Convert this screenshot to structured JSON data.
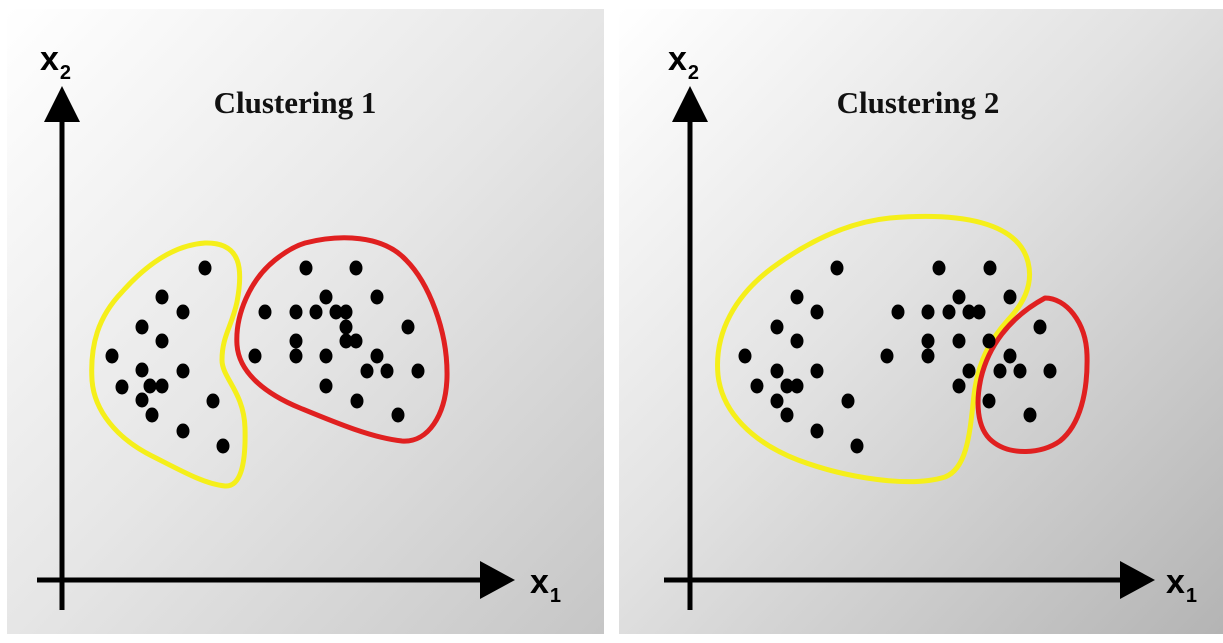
{
  "panels": [
    {
      "title": "Clustering 1",
      "y_axis": {
        "var": "x",
        "sub": "2"
      },
      "x_axis": {
        "var": "x",
        "sub": "1"
      },
      "points": [
        [
          205,
          268
        ],
        [
          162,
          297
        ],
        [
          183,
          312
        ],
        [
          142,
          327
        ],
        [
          162,
          341
        ],
        [
          112,
          356
        ],
        [
          142,
          370
        ],
        [
          183,
          371
        ],
        [
          122,
          387
        ],
        [
          150,
          386
        ],
        [
          162,
          386
        ],
        [
          142,
          400
        ],
        [
          152,
          415
        ],
        [
          213,
          401
        ],
        [
          183,
          431
        ],
        [
          223,
          446
        ],
        [
          306,
          268
        ],
        [
          356,
          268
        ],
        [
          377,
          297
        ],
        [
          326,
          297
        ],
        [
          265,
          312
        ],
        [
          296,
          312
        ],
        [
          316,
          312
        ],
        [
          336,
          312
        ],
        [
          346,
          312
        ],
        [
          346,
          327
        ],
        [
          408,
          327
        ],
        [
          296,
          341
        ],
        [
          356,
          341
        ],
        [
          346,
          341
        ],
        [
          255,
          356
        ],
        [
          296,
          356
        ],
        [
          326,
          356
        ],
        [
          377,
          356
        ],
        [
          387,
          371
        ],
        [
          367,
          371
        ],
        [
          418,
          371
        ],
        [
          326,
          386
        ],
        [
          357,
          401
        ],
        [
          398,
          415
        ]
      ],
      "clusters": [
        {
          "name": "yellow",
          "color": "#f5ef1a"
        },
        {
          "name": "red",
          "color": "#e02020"
        }
      ]
    },
    {
      "title": "Clustering 2",
      "y_axis": {
        "var": "x",
        "sub": "2"
      },
      "x_axis": {
        "var": "x",
        "sub": "1"
      },
      "points": [
        [
          837,
          268
        ],
        [
          939,
          268
        ],
        [
          990,
          268
        ],
        [
          797,
          297
        ],
        [
          959,
          297
        ],
        [
          969,
          312
        ],
        [
          979,
          312
        ],
        [
          1010,
          297
        ],
        [
          817,
          312
        ],
        [
          898,
          312
        ],
        [
          928,
          312
        ],
        [
          949,
          312
        ],
        [
          777,
          327
        ],
        [
          797,
          341
        ],
        [
          928,
          341
        ],
        [
          959,
          341
        ],
        [
          989,
          341
        ],
        [
          745,
          356
        ],
        [
          777,
          371
        ],
        [
          887,
          356
        ],
        [
          928,
          356
        ],
        [
          969,
          371
        ],
        [
          817,
          371
        ],
        [
          757,
          386
        ],
        [
          787,
          386
        ],
        [
          797,
          386
        ],
        [
          959,
          386
        ],
        [
          777,
          401
        ],
        [
          848,
          401
        ],
        [
          787,
          415
        ],
        [
          817,
          431
        ],
        [
          857,
          446
        ],
        [
          1040,
          327
        ],
        [
          1010,
          356
        ],
        [
          1020,
          371
        ],
        [
          1000,
          371
        ],
        [
          1050,
          371
        ],
        [
          989,
          401
        ],
        [
          1030,
          415
        ]
      ],
      "clusters": [
        {
          "name": "yellow",
          "color": "#f5ef1a"
        },
        {
          "name": "red",
          "color": "#e02020"
        }
      ]
    }
  ]
}
